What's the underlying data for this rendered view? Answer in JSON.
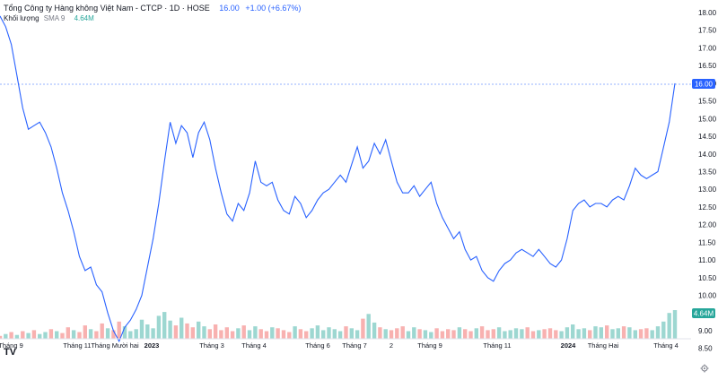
{
  "header": {
    "symbol": "Tổng Công ty Hàng không Việt Nam - CTCP · 1D · HOSE",
    "last_price": "16.00",
    "change": "+1.00 (+6.67%)"
  },
  "volume_legend": {
    "label": "Khối lượng",
    "indicator": "SMA 9",
    "value": "4.64M"
  },
  "price_tag": "16.00",
  "volume_tag": "4.64M",
  "logo_text": "TV",
  "icons": {
    "settings": "settings-icon",
    "logo": "tradingview-logo-icon"
  },
  "colors": {
    "line": "#2962ff",
    "up": "#26a69a",
    "down": "#ef5350",
    "price_tag_bg": "#2962ff",
    "volume_tag_bg": "#26a69a"
  },
  "chart_data": {
    "type": "line",
    "y_range": [
      8.2,
      18.2
    ],
    "y_ticks": [
      "18.00",
      "17.50",
      "17.00",
      "16.50",
      "16.00",
      "15.50",
      "15.00",
      "14.50",
      "14.00",
      "13.50",
      "13.00",
      "12.50",
      "12.00",
      "11.50",
      "11.00",
      "10.50",
      "10.00",
      "9.50",
      "9.00",
      "8.50"
    ],
    "x_ticks": [
      "Tháng 9",
      "Tháng 11",
      "Tháng Mười hai",
      "2023",
      "Tháng 3",
      "Tháng 4",
      "Tháng 6",
      "Tháng 7",
      "2",
      "Tháng 9",
      "Tháng 11",
      "2024",
      "Tháng Hai",
      "Tháng 4"
    ],
    "price_series": [
      17.9,
      17.6,
      17.1,
      16.2,
      15.3,
      14.7,
      14.8,
      14.9,
      14.6,
      14.2,
      13.6,
      12.9,
      12.4,
      11.8,
      11.1,
      10.7,
      10.8,
      10.3,
      10.1,
      9.5,
      9.0,
      8.7,
      9.1,
      9.3,
      9.6,
      10.0,
      10.8,
      11.6,
      12.6,
      13.8,
      14.9,
      14.3,
      14.8,
      14.6,
      13.9,
      14.6,
      14.9,
      14.4,
      13.6,
      12.9,
      12.3,
      12.1,
      12.6,
      12.4,
      12.9,
      13.8,
      13.2,
      13.1,
      13.2,
      12.7,
      12.4,
      12.3,
      12.8,
      12.6,
      12.2,
      12.4,
      12.7,
      12.9,
      13.0,
      13.2,
      13.4,
      13.2,
      13.7,
      14.2,
      13.6,
      13.8,
      14.3,
      14.0,
      14.4,
      13.8,
      13.2,
      12.9,
      12.9,
      13.1,
      12.8,
      13.0,
      13.2,
      12.6,
      12.2,
      11.9,
      11.6,
      11.8,
      11.3,
      11.0,
      11.1,
      10.7,
      10.5,
      10.4,
      10.7,
      10.9,
      11.0,
      11.2,
      11.3,
      11.2,
      11.1,
      11.3,
      11.1,
      10.9,
      10.8,
      11.0,
      11.6,
      12.4,
      12.6,
      12.7,
      12.5,
      12.6,
      12.6,
      12.5,
      12.7,
      12.8,
      12.7,
      13.1,
      13.6,
      13.4,
      13.3,
      13.4,
      13.5,
      14.2,
      14.9,
      16.0
    ],
    "volume_series": [
      3,
      5,
      7,
      4,
      8,
      6,
      9,
      5,
      7,
      10,
      8,
      6,
      12,
      9,
      7,
      14,
      10,
      8,
      16,
      11,
      9,
      18,
      13,
      8,
      10,
      20,
      15,
      11,
      24,
      28,
      19,
      14,
      22,
      16,
      12,
      18,
      13,
      10,
      15,
      9,
      12,
      8,
      11,
      14,
      9,
      13,
      10,
      8,
      12,
      11,
      9,
      7,
      13,
      10,
      8,
      11,
      14,
      9,
      12,
      10,
      8,
      13,
      11,
      9,
      21,
      26,
      17,
      12,
      10,
      9,
      11,
      13,
      8,
      12,
      10,
      9,
      7,
      11,
      8,
      10,
      9,
      12,
      10,
      8,
      11,
      13,
      9,
      10,
      12,
      8,
      9,
      11,
      10,
      12,
      8,
      9,
      10,
      11,
      9,
      8,
      12,
      15,
      10,
      11,
      9,
      13,
      12,
      14,
      10,
      11,
      13,
      12,
      9,
      10,
      11,
      9,
      13,
      18,
      27,
      30
    ],
    "volume_up": [
      false,
      true,
      false,
      true,
      false,
      true,
      false,
      true,
      true,
      false,
      true,
      false,
      false,
      true,
      false,
      false,
      true,
      false,
      false,
      true,
      false,
      false,
      true,
      true,
      true,
      true,
      true,
      true,
      true,
      true,
      true,
      false,
      true,
      false,
      false,
      true,
      true,
      false,
      false,
      false,
      false,
      false,
      true,
      false,
      true,
      true,
      false,
      false,
      true,
      false,
      false,
      false,
      true,
      false,
      false,
      true,
      true,
      true,
      true,
      true,
      true,
      false,
      true,
      true,
      false,
      true,
      true,
      false,
      true,
      false,
      false,
      false,
      true,
      true,
      false,
      true,
      true,
      false,
      false,
      false,
      false,
      true,
      false,
      false,
      true,
      false,
      false,
      false,
      true,
      true,
      true,
      true,
      true,
      false,
      false,
      true,
      false,
      false,
      false,
      true,
      true,
      true,
      true,
      true,
      false,
      true,
      true,
      false,
      true,
      true,
      false,
      true,
      true,
      false,
      false,
      true,
      true,
      true,
      true,
      true
    ]
  }
}
